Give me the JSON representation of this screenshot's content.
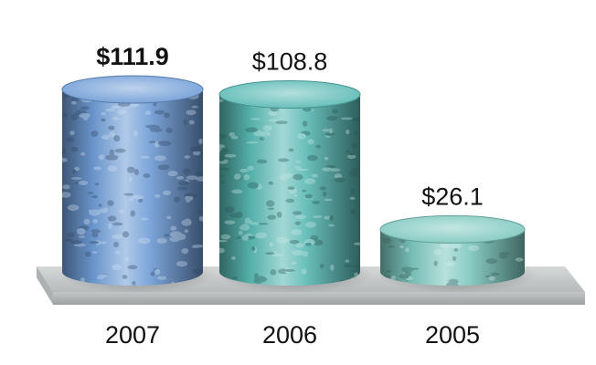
{
  "chart_data": {
    "type": "bar",
    "categories": [
      "2007",
      "2006",
      "2005"
    ],
    "values": [
      111.9,
      108.8,
      26.1
    ],
    "value_labels": [
      "$111.9",
      "$108.8",
      "$26.1"
    ],
    "highlight_index": 0,
    "colors": [
      "#6e9cd6",
      "#58b8b3",
      "#7cc7bf"
    ],
    "platform_color": "#cfd2d2",
    "ylim": [
      0,
      111.9
    ]
  }
}
